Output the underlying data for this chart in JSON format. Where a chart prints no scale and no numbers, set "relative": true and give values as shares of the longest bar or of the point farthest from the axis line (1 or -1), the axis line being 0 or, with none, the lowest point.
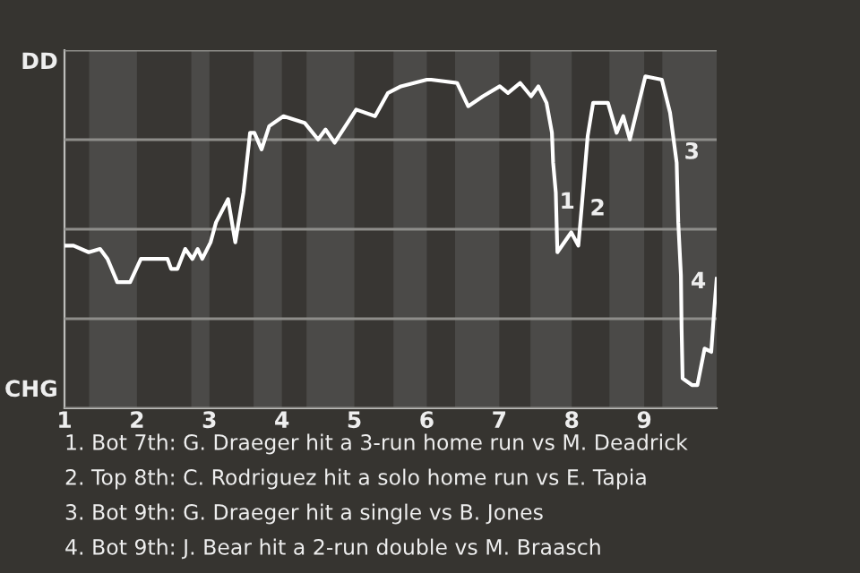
{
  "chart_data": {
    "type": "line",
    "relative": true,
    "x": [
      1.0,
      1.125,
      1.334,
      1.491,
      1.594,
      1.728,
      1.906,
      2.054,
      2.422,
      2.471,
      2.559,
      2.666,
      2.765,
      2.838,
      2.901,
      3.016,
      3.091,
      3.257,
      3.357,
      3.47,
      3.561,
      3.62,
      3.72,
      3.825,
      4.022,
      4.313,
      4.5,
      4.603,
      4.728,
      5.025,
      5.286,
      5.464,
      5.643,
      6.0,
      6.061,
      6.418,
      6.571,
      6.775,
      7.007,
      7.12,
      7.289,
      7.439,
      7.539,
      7.652,
      7.727,
      7.743,
      7.78,
      7.802,
      7.993,
      8.091,
      8.143,
      8.22,
      8.295,
      8.5,
      8.62,
      8.711,
      8.802,
      9.016,
      9.243,
      9.357,
      9.448,
      9.47,
      9.507,
      9.516,
      9.53,
      9.659,
      9.734,
      9.834,
      9.925,
      9.961,
      10.0
    ],
    "series": [
      {
        "color": "#ffffff",
        "values": [
          0.49,
          0.49,
          0.47,
          0.48,
          0.45,
          0.38,
          0.38,
          0.45,
          0.45,
          0.42,
          0.42,
          0.48,
          0.45,
          0.48,
          0.45,
          0.5,
          0.56,
          0.63,
          0.5,
          0.65,
          0.83,
          0.83,
          0.78,
          0.85,
          0.88,
          0.86,
          0.81,
          0.84,
          0.8,
          0.9,
          0.88,
          0.95,
          0.97,
          0.99,
          0.99,
          0.98,
          0.91,
          0.94,
          0.97,
          0.95,
          0.98,
          0.94,
          0.97,
          0.92,
          0.83,
          0.74,
          0.65,
          0.47,
          0.53,
          0.49,
          0.62,
          0.82,
          0.92,
          0.92,
          0.83,
          0.88,
          0.81,
          1.0,
          0.99,
          0.89,
          0.74,
          0.56,
          0.4,
          0.24,
          0.09,
          0.07,
          0.07,
          0.18,
          0.17,
          0.28,
          0.39
        ]
      }
    ],
    "xlim": [
      1,
      10
    ],
    "xticks": [
      1,
      2,
      3,
      4,
      5,
      6,
      7,
      8,
      9
    ],
    "tick_labels": "x",
    "grid": "y",
    "bands": [
      {
        "axis": "x",
        "from": 1.34,
        "to": 2,
        "color": "#4b4a48"
      },
      {
        "axis": "x",
        "from": 2.75,
        "to": 3,
        "color": "#4b4a48"
      },
      {
        "axis": "x",
        "from": 3.61,
        "to": 4,
        "color": "#4b4a48"
      },
      {
        "axis": "x",
        "from": 4.34,
        "to": 5,
        "color": "#4b4a48"
      },
      {
        "axis": "x",
        "from": 5.54,
        "to": 6,
        "color": "#4b4a48"
      },
      {
        "axis": "x",
        "from": 6.39,
        "to": 7,
        "color": "#4b4a48"
      },
      {
        "axis": "x",
        "from": 7.43,
        "to": 8,
        "color": "#4b4a48"
      },
      {
        "axis": "x",
        "from": 8.52,
        "to": 9,
        "color": "#4b4a48"
      },
      {
        "axis": "x",
        "from": 9.25,
        "to": 10,
        "color": "#4b4a48"
      }
    ],
    "annotations": [
      "DD",
      "CHG",
      {
        "text": "1",
        "x": 7.83,
        "y": 0.62
      },
      {
        "text": "2",
        "x": 8.25,
        "y": 0.6
      },
      {
        "text": "3",
        "x": 9.55,
        "y": 0.77
      },
      {
        "text": "4",
        "x": 9.64,
        "y": 0.38
      },
      "1. Bot 7th: G. Draeger hit a 3-run home run vs M. Deadrick",
      "2. Top 8th: C. Rodriguez hit a solo home run vs E. Tapia",
      "3. Bot 9th: G. Draeger hit a single vs B. Jones",
      "4. Bot 9th: J. Bear hit a 2-run double vs M. Braasch"
    ],
    "marker": "none",
    "line_style": "solid"
  }
}
